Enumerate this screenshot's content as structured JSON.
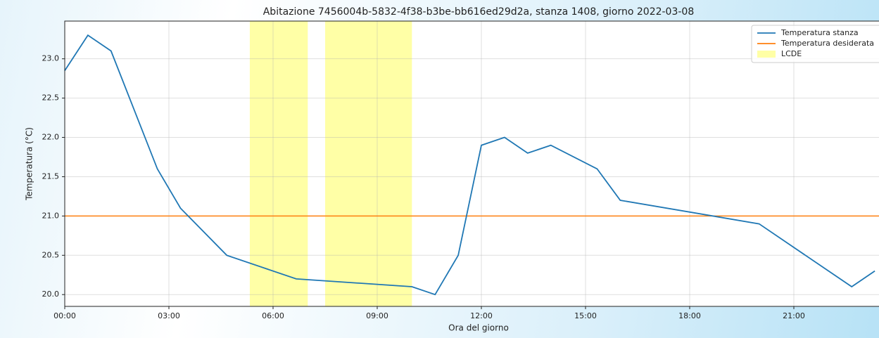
{
  "chart_data": {
    "type": "line",
    "title": "Abitazione 7456004b-5832-4f38-b3be-bb616ed29d2a, stanza 1408, giorno 2022-03-08",
    "xlabel": "Ora del giorno",
    "ylabel": "Temperatura (°C)",
    "xlim": [
      0,
      24
    ],
    "xticks": [
      {
        "value": 0,
        "label": "00:00"
      },
      {
        "value": 3,
        "label": "03:00"
      },
      {
        "value": 6,
        "label": "06:00"
      },
      {
        "value": 9,
        "label": "09:00"
      },
      {
        "value": 12,
        "label": "12:00"
      },
      {
        "value": 15,
        "label": "15:00"
      },
      {
        "value": 18,
        "label": "18:00"
      },
      {
        "value": 21,
        "label": "21:00"
      }
    ],
    "ylim": [
      19.85,
      23.48
    ],
    "yticks": [
      {
        "value": 20,
        "label": "20.0"
      },
      20.5,
      {
        "value": 21,
        "label": "21.0"
      },
      21.5,
      {
        "value": 22,
        "label": "22.0"
      },
      22.5,
      {
        "value": 23,
        "label": "23.0"
      }
    ],
    "grid": true,
    "legend": "upper right",
    "series": [
      {
        "name": "Temperatura stanza",
        "color": "#1f77b4",
        "x": [
          0,
          0.667,
          1.333,
          2.667,
          3.333,
          4.667,
          6.667,
          10,
          10.667,
          11.333,
          12,
          12.667,
          13.333,
          14,
          15.333,
          16,
          20,
          22.667,
          23.333
        ],
        "values": [
          22.85,
          23.3,
          23.1,
          21.6,
          21.1,
          20.5,
          20.2,
          20.1,
          20.0,
          20.5,
          21.9,
          22.0,
          21.8,
          21.9,
          21.6,
          21.2,
          20.9,
          20.1,
          20.3
        ]
      }
    ],
    "hlines": [
      {
        "name": "Temperatura desiderata",
        "color": "#ff7f0e",
        "value": 21.0
      }
    ],
    "span_legend": {
      "name": "LCDE",
      "color": "#ffff00"
    },
    "spans": [
      {
        "start": 5.33,
        "end": 7.0
      },
      {
        "start": 7.5,
        "end": 10.0
      }
    ]
  }
}
